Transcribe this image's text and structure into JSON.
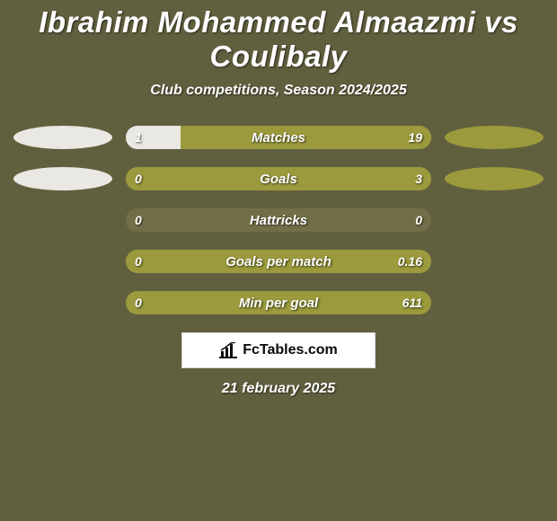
{
  "colors": {
    "background": "#61603e",
    "text": "#ffffff",
    "left_fill": "#e9e8e2",
    "right_fill": "#9b9a3d",
    "track": "#726f48",
    "logo_bg": "#ffffff",
    "logo_text": "#0a0a0a",
    "logo_border": "#d5d5d5"
  },
  "title": "Ibrahim Mohammed Almaazmi vs Coulibaly",
  "subtitle": "Club competitions, Season 2024/2025",
  "date": "21 february 2025",
  "logo": {
    "text": "FcTables.com"
  },
  "rows": [
    {
      "label": "Matches",
      "left_value": "1",
      "right_value": "19",
      "left_pct": 18,
      "right_pct": 82,
      "show_left_ellipse": true,
      "show_right_ellipse": true
    },
    {
      "label": "Goals",
      "left_value": "0",
      "right_value": "3",
      "left_pct": 0,
      "right_pct": 100,
      "show_left_ellipse": true,
      "show_right_ellipse": true
    },
    {
      "label": "Hattricks",
      "left_value": "0",
      "right_value": "0",
      "left_pct": 0,
      "right_pct": 0,
      "show_left_ellipse": false,
      "show_right_ellipse": false
    },
    {
      "label": "Goals per match",
      "left_value": "0",
      "right_value": "0.16",
      "left_pct": 0,
      "right_pct": 100,
      "show_left_ellipse": false,
      "show_right_ellipse": false
    },
    {
      "label": "Min per goal",
      "left_value": "0",
      "right_value": "611",
      "left_pct": 0,
      "right_pct": 100,
      "show_left_ellipse": false,
      "show_right_ellipse": false
    }
  ]
}
